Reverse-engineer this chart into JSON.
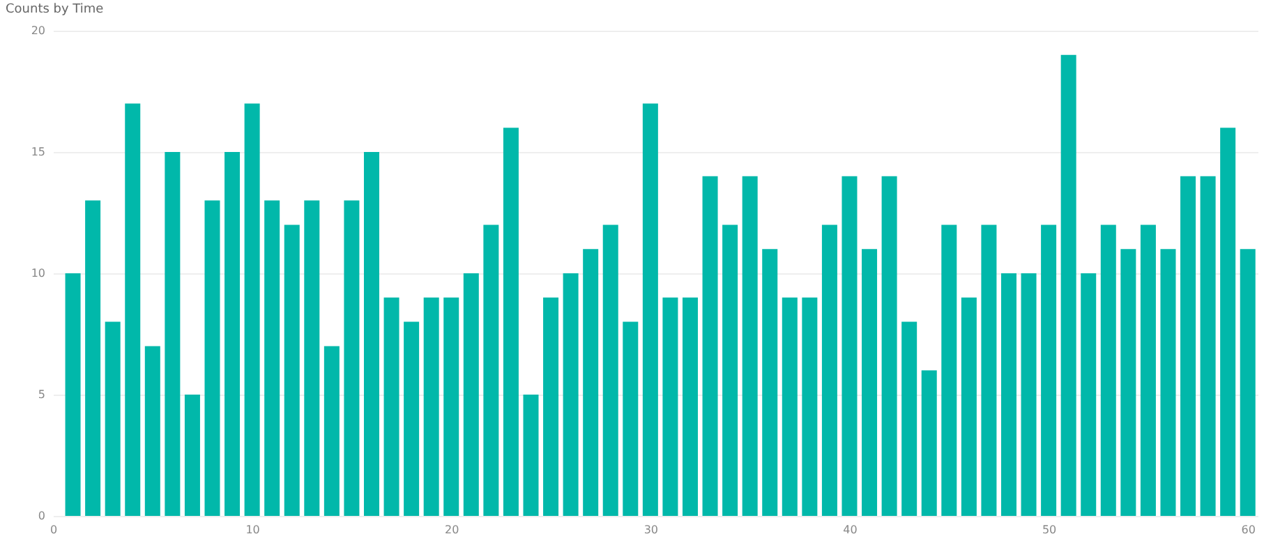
{
  "chart_data": {
    "type": "bar",
    "title": "Counts by Time",
    "x": [
      1,
      2,
      3,
      4,
      5,
      6,
      7,
      8,
      9,
      10,
      11,
      12,
      13,
      14,
      15,
      16,
      17,
      18,
      19,
      20,
      21,
      22,
      23,
      24,
      25,
      26,
      27,
      28,
      29,
      30,
      31,
      32,
      33,
      34,
      35,
      36,
      37,
      38,
      39,
      40,
      41,
      42,
      43,
      44,
      45,
      46,
      47,
      48,
      49,
      50,
      51,
      52,
      53,
      54,
      55,
      56,
      57,
      58,
      59,
      60
    ],
    "values": [
      10,
      13,
      8,
      17,
      7,
      15,
      5,
      13,
      15,
      17,
      13,
      12,
      13,
      7,
      13,
      15,
      9,
      8,
      9,
      9,
      10,
      12,
      16,
      5,
      9,
      10,
      11,
      12,
      8,
      17,
      9,
      9,
      14,
      12,
      14,
      11,
      9,
      9,
      12,
      14,
      11,
      14,
      8,
      6,
      12,
      9,
      12,
      10,
      10,
      12,
      19,
      10,
      12,
      11,
      12,
      11,
      14,
      14,
      16,
      11
    ],
    "color": "#01b8aa",
    "xlim": [
      0,
      60.5
    ],
    "xticks": [
      0,
      10,
      20,
      30,
      40,
      50,
      60
    ],
    "ylim": [
      0,
      20
    ],
    "yticks": [
      0,
      5,
      10,
      15,
      20
    ],
    "grid": "y"
  }
}
